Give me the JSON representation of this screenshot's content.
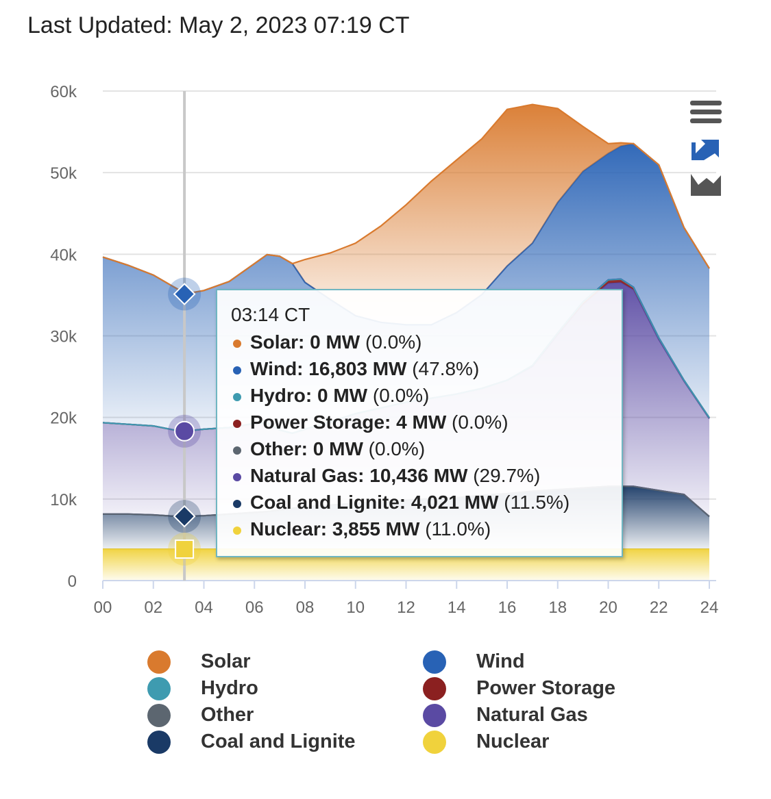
{
  "header": {
    "last_updated": "Last Updated: May 2, 2023 07:19 CT"
  },
  "chart_data": {
    "type": "area",
    "stacked": true,
    "title": "",
    "xlabel": "",
    "ylabel": "",
    "x_ticks": [
      "00",
      "02",
      "04",
      "06",
      "08",
      "10",
      "12",
      "14",
      "16",
      "18",
      "20",
      "22",
      "24"
    ],
    "y_ticks": [
      "0",
      "10k",
      "20k",
      "30k",
      "40k",
      "50k",
      "60k"
    ],
    "xlim": [
      0,
      24
    ],
    "ylim": [
      0,
      60000
    ],
    "grid": true,
    "legend_position": "bottom",
    "x_hours": [
      0,
      1,
      2,
      3,
      3.23,
      4,
      5,
      6,
      6.5,
      7,
      7.5,
      8,
      9,
      10,
      11,
      12,
      13,
      14,
      15,
      16,
      17,
      18,
      19,
      20,
      20.5,
      21,
      22,
      23,
      24
    ],
    "series": [
      {
        "name": "Nuclear",
        "color": "#f0d23c",
        "values": [
          3855,
          3855,
          3855,
          3855,
          3855,
          3855,
          3855,
          3855,
          3855,
          3855,
          3855,
          3855,
          3855,
          3855,
          3855,
          3855,
          3855,
          3855,
          3855,
          3855,
          3855,
          3855,
          3855,
          3855,
          3855,
          3855,
          3855,
          3855,
          3855
        ]
      },
      {
        "name": "Coal and Lignite",
        "color": "#1a3a66",
        "values": [
          4300,
          4300,
          4200,
          4000,
          4021,
          4100,
          4300,
          4500,
          4600,
          4800,
          5000,
          5200,
          5400,
          5600,
          5800,
          6000,
          6200,
          6300,
          6600,
          6800,
          7100,
          7300,
          7500,
          7700,
          7700,
          7700,
          7200,
          6700,
          4000
        ]
      },
      {
        "name": "Other",
        "color": "#5c6670",
        "values": [
          0,
          0,
          0,
          0,
          0,
          0,
          0,
          0,
          0,
          0,
          0,
          0,
          0,
          0,
          0,
          0,
          0,
          0,
          0,
          0,
          0,
          0,
          0,
          0,
          0,
          0,
          0,
          0,
          0
        ]
      },
      {
        "name": "Natural Gas",
        "color": "#5a4aa3",
        "values": [
          11200,
          11000,
          10900,
          10500,
          10436,
          10600,
          10600,
          10900,
          10900,
          9800,
          9200,
          9500,
          10200,
          11000,
          11500,
          12000,
          12300,
          12700,
          13100,
          13900,
          15300,
          19000,
          22500,
          24900,
          25000,
          24100,
          18500,
          13900,
          12000
        ]
      },
      {
        "name": "Power Storage",
        "color": "#8b2020",
        "values": [
          0,
          0,
          0,
          0,
          4,
          0,
          0,
          0,
          0,
          0,
          0,
          0,
          0,
          0,
          0,
          0,
          0,
          0,
          0,
          0,
          100,
          200,
          300,
          400,
          400,
          300,
          200,
          100,
          100
        ]
      },
      {
        "name": "Hydro",
        "color": "#3e9bb0",
        "values": [
          0,
          0,
          0,
          0,
          0,
          0,
          0,
          0,
          0,
          0,
          0,
          0,
          0,
          0,
          0,
          0,
          0,
          0,
          0,
          0,
          0,
          0,
          0,
          0,
          0,
          0,
          0,
          0,
          0
        ]
      },
      {
        "name": "Wind",
        "color": "#2862b5",
        "values": [
          20300,
          19500,
          18500,
          17300,
          16803,
          17000,
          17900,
          19600,
          20600,
          21300,
          20800,
          18000,
          15000,
          12000,
          10500,
          9500,
          9000,
          10000,
          11500,
          14000,
          15000,
          16000,
          16000,
          15500,
          16300,
          17600,
          21200,
          18700,
          18300
        ]
      },
      {
        "name": "Solar",
        "color": "#d97a2e",
        "values": [
          0,
          0,
          0,
          0,
          0,
          0,
          0,
          0,
          0,
          0,
          0,
          2800,
          5700,
          8900,
          11800,
          14700,
          17600,
          18700,
          19100,
          19200,
          17000,
          11500,
          5500,
          1200,
          400,
          0,
          0,
          0,
          0
        ]
      }
    ]
  },
  "tooltip": {
    "time": "03:14 CT",
    "rows": [
      {
        "label": "Solar: 0 MW",
        "pct": " (0.0%)",
        "color": "#d97a2e"
      },
      {
        "label": "Wind: 16,803 MW",
        "pct": " (47.8%)",
        "color": "#2862b5"
      },
      {
        "label": "Hydro: 0 MW",
        "pct": " (0.0%)",
        "color": "#3e9bb0"
      },
      {
        "label": "Power Storage: 4 MW",
        "pct": " (0.0%)",
        "color": "#8b2020"
      },
      {
        "label": "Other: 0 MW",
        "pct": " (0.0%)",
        "color": "#5c6670"
      },
      {
        "label": "Natural Gas: 10,436 MW",
        "pct": " (29.7%)",
        "color": "#5a4aa3"
      },
      {
        "label": "Coal and Lignite: 4,021 MW",
        "pct": " (11.5%)",
        "color": "#1a3a66"
      },
      {
        "label": "Nuclear: 3,855 MW",
        "pct": " (11.0%)",
        "color": "#f0d23c"
      }
    ]
  },
  "legend": [
    {
      "label": "Solar",
      "color": "#d97a2e"
    },
    {
      "label": "Wind",
      "color": "#2862b5"
    },
    {
      "label": "Hydro",
      "color": "#3e9bb0"
    },
    {
      "label": "Power Storage",
      "color": "#8b2020"
    },
    {
      "label": "Other",
      "color": "#5c6670"
    },
    {
      "label": "Natural Gas",
      "color": "#5a4aa3"
    },
    {
      "label": "Coal and Lignite",
      "color": "#1a3a66"
    },
    {
      "label": "Nuclear",
      "color": "#f0d23c"
    }
  ],
  "toolbar": {
    "menu_icon": "hamburger-icon",
    "zoom_icon": "reset-zoom-icon",
    "chart_type_icon": "area-chart-icon"
  }
}
